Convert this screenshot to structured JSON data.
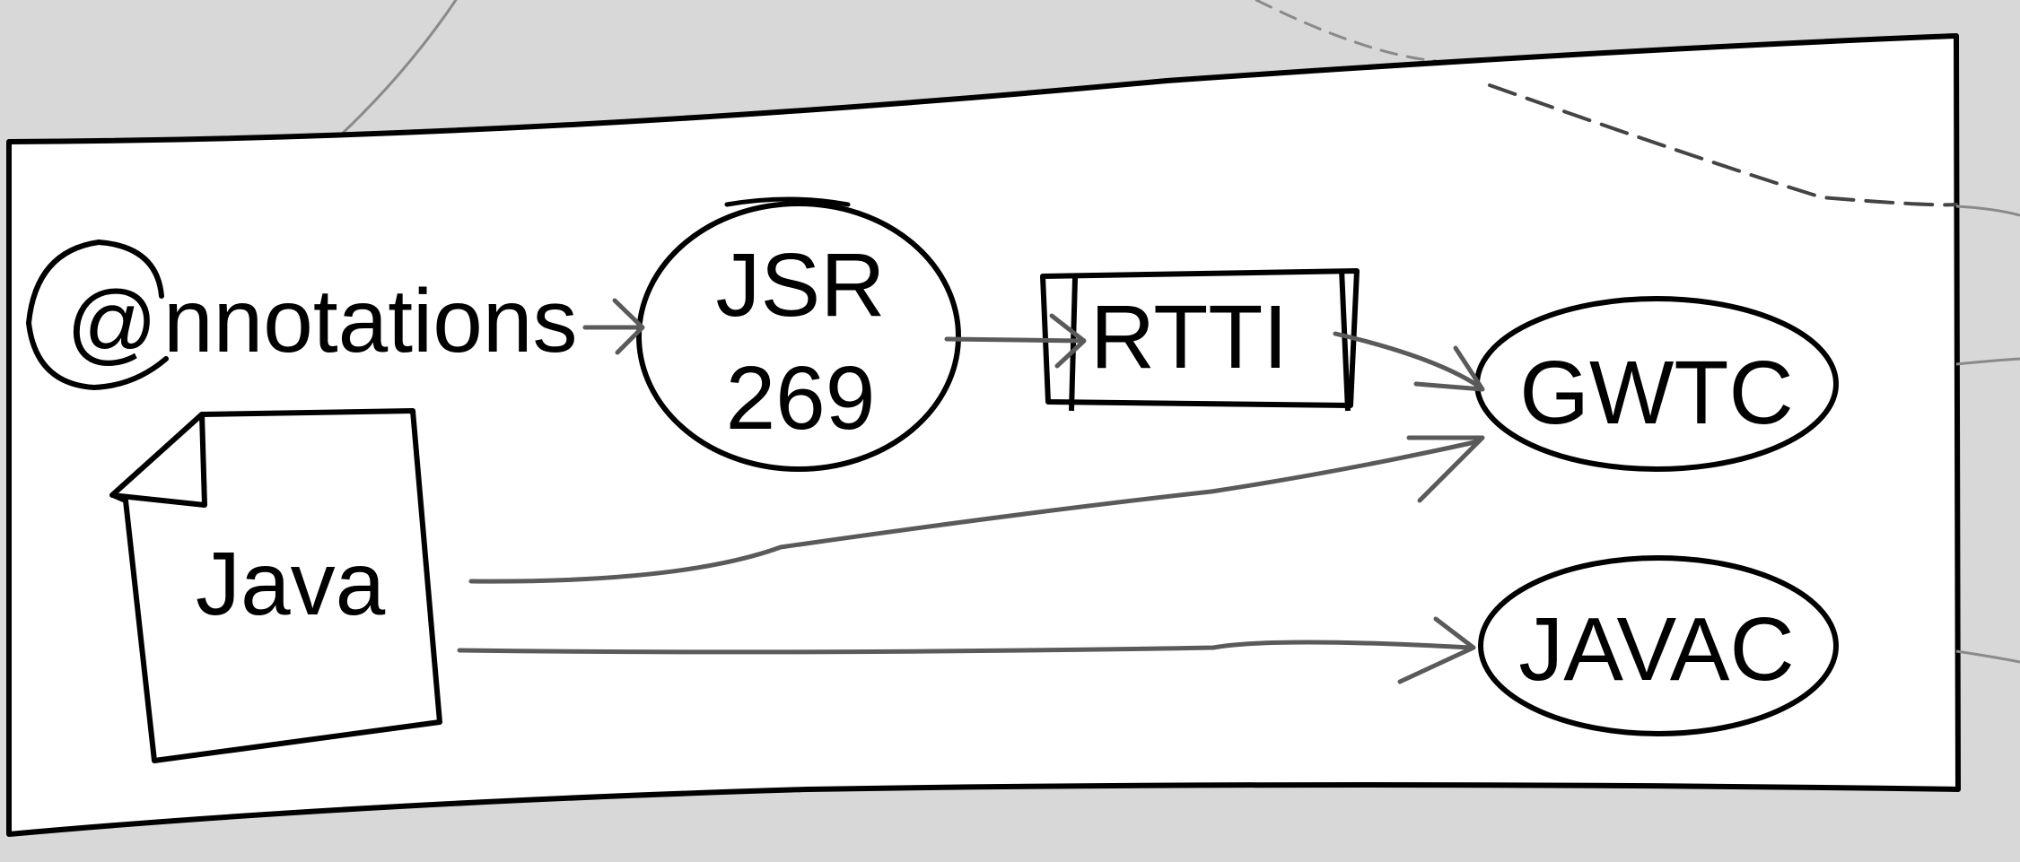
{
  "diagram": {
    "nodes": {
      "annotations": {
        "at_sign": "@",
        "label": "nnotations"
      },
      "java": {
        "label": "Java"
      },
      "jsr": {
        "line1": "JSR",
        "line2": "269"
      },
      "rtti": {
        "label": "RTTI"
      },
      "gwtc": {
        "label": "GWTC"
      },
      "javac": {
        "label": "JAVAC"
      }
    },
    "edges": [
      {
        "from": "annotations",
        "to": "jsr"
      },
      {
        "from": "jsr",
        "to": "rtti"
      },
      {
        "from": "rtti",
        "to": "gwtc"
      },
      {
        "from": "java",
        "to": "gwtc"
      },
      {
        "from": "java",
        "to": "javac"
      }
    ]
  },
  "colors": {
    "background": "#d8d8d8",
    "panel": "#ffffff",
    "ink": "#000000",
    "connector": "#5a5a5a",
    "faint": "#8a8a8a"
  }
}
